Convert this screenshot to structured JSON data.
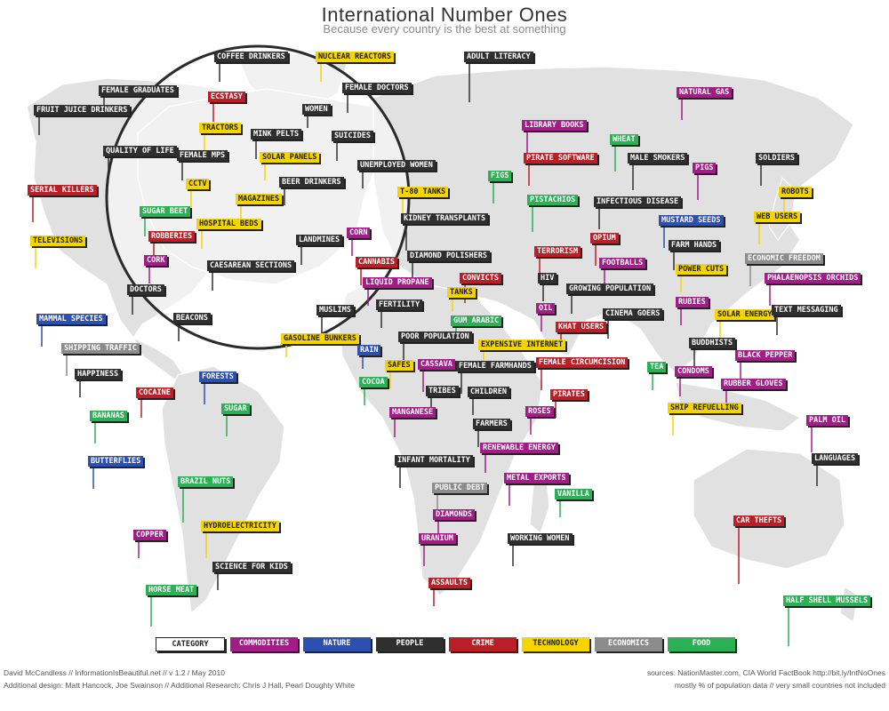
{
  "title": "International Number Ones",
  "subtitle": "Because every country is the best at something",
  "colors": {
    "commodities": "#a21d87",
    "nature": "#2d4fb0",
    "people": "#2f2f2f",
    "crime": "#b81f27",
    "technology": "#f5d400",
    "economics": "#8c8c8c",
    "food": "#2bb056",
    "land": "#e1e1e1"
  },
  "legend": [
    {
      "label": "Category",
      "cat": "category"
    },
    {
      "label": "Commodities",
      "cat": "commodities"
    },
    {
      "label": "Nature",
      "cat": "nature"
    },
    {
      "label": "People",
      "cat": "people"
    },
    {
      "label": "Crime",
      "cat": "crime"
    },
    {
      "label": "Technology",
      "cat": "technology"
    },
    {
      "label": "Economics",
      "cat": "economics"
    },
    {
      "label": "Food",
      "cat": "food"
    }
  ],
  "labels": [
    {
      "text": "Coffee Drinkers",
      "cat": "people"
    },
    {
      "text": "Nuclear Reactors",
      "cat": "technology"
    },
    {
      "text": "Adult Literacy",
      "cat": "people"
    },
    {
      "text": "Female Graduates",
      "cat": "people"
    },
    {
      "text": "Fruit Juice Drinkers",
      "cat": "people"
    },
    {
      "text": "Ecstasy",
      "cat": "crime"
    },
    {
      "text": "Female Doctors",
      "cat": "people"
    },
    {
      "text": "Women",
      "cat": "people"
    },
    {
      "text": "Natural Gas",
      "cat": "commodities"
    },
    {
      "text": "Tractors",
      "cat": "technology"
    },
    {
      "text": "Mink Pelts",
      "cat": "people"
    },
    {
      "text": "Suicides",
      "cat": "people"
    },
    {
      "text": "Library Books",
      "cat": "commodities"
    },
    {
      "text": "Quality of Life",
      "cat": "people"
    },
    {
      "text": "Female MPs",
      "cat": "people"
    },
    {
      "text": "Solar Panels",
      "cat": "technology"
    },
    {
      "text": "Wheat",
      "cat": "food"
    },
    {
      "text": "Pirate Software",
      "cat": "crime"
    },
    {
      "text": "Male Smokers",
      "cat": "people"
    },
    {
      "text": "Soldiers",
      "cat": "people"
    },
    {
      "text": "Unemployed Women",
      "cat": "people"
    },
    {
      "text": "Pigs",
      "cat": "commodities"
    },
    {
      "text": "CCTV",
      "cat": "technology"
    },
    {
      "text": "Beer Drinkers",
      "cat": "people"
    },
    {
      "text": "Figs",
      "cat": "food"
    },
    {
      "text": "T-80 Tanks",
      "cat": "technology"
    },
    {
      "text": "Robots",
      "cat": "technology"
    },
    {
      "text": "Serial Killers",
      "cat": "crime"
    },
    {
      "text": "Magazines",
      "cat": "technology"
    },
    {
      "text": "Pistachios",
      "cat": "food"
    },
    {
      "text": "Infectious Disease",
      "cat": "people"
    },
    {
      "text": "Sugar Beet",
      "cat": "food"
    },
    {
      "text": "Hospital Beds",
      "cat": "technology"
    },
    {
      "text": "Kidney Transplants",
      "cat": "people"
    },
    {
      "text": "Mustard Seeds",
      "cat": "nature"
    },
    {
      "text": "Web Users",
      "cat": "technology"
    },
    {
      "text": "Robberies",
      "cat": "crime"
    },
    {
      "text": "Corn",
      "cat": "commodities"
    },
    {
      "text": "Opium",
      "cat": "crime"
    },
    {
      "text": "Televisions",
      "cat": "technology"
    },
    {
      "text": "Landmines",
      "cat": "people"
    },
    {
      "text": "Terrorism",
      "cat": "crime"
    },
    {
      "text": "Farm Hands",
      "cat": "people"
    },
    {
      "text": "Diamond Polishers",
      "cat": "people"
    },
    {
      "text": "Footballs",
      "cat": "commodities"
    },
    {
      "text": "Cork",
      "cat": "commodities"
    },
    {
      "text": "Caesarean Sections",
      "cat": "people"
    },
    {
      "text": "Cannabis",
      "cat": "crime"
    },
    {
      "text": "Power Cuts",
      "cat": "technology"
    },
    {
      "text": "Economic Freedom",
      "cat": "economics"
    },
    {
      "text": "Convicts",
      "cat": "crime"
    },
    {
      "text": "Liquid Propane",
      "cat": "commodities"
    },
    {
      "text": "HIV",
      "cat": "people"
    },
    {
      "text": "Growing Population",
      "cat": "people"
    },
    {
      "text": "Phalaenopsis Orchids",
      "cat": "commodities"
    },
    {
      "text": "Doctors",
      "cat": "people"
    },
    {
      "text": "Tanks",
      "cat": "technology"
    },
    {
      "text": "Fertility",
      "cat": "people"
    },
    {
      "text": "Oil",
      "cat": "commodities"
    },
    {
      "text": "Rubies",
      "cat": "commodities"
    },
    {
      "text": "Muslims",
      "cat": "people"
    },
    {
      "text": "Cinema Goers",
      "cat": "people"
    },
    {
      "text": "Solar Energy",
      "cat": "technology"
    },
    {
      "text": "Text Messaging",
      "cat": "people"
    },
    {
      "text": "Mammal Species",
      "cat": "nature"
    },
    {
      "text": "Gum Arabic",
      "cat": "food"
    },
    {
      "text": "Beacons",
      "cat": "people"
    },
    {
      "text": "Gasoline Bunkers",
      "cat": "technology"
    },
    {
      "text": "Poor Population",
      "cat": "people"
    },
    {
      "text": "Khat Users",
      "cat": "crime"
    },
    {
      "text": "Buddhists",
      "cat": "people"
    },
    {
      "text": "Shipping Traffic",
      "cat": "economics"
    },
    {
      "text": "Expensive Internet",
      "cat": "technology"
    },
    {
      "text": "Rain",
      "cat": "nature"
    },
    {
      "text": "Black Pepper",
      "cat": "commodities"
    },
    {
      "text": "Safes",
      "cat": "technology"
    },
    {
      "text": "Cassava",
      "cat": "commodities"
    },
    {
      "text": "Female Farmhands",
      "cat": "people"
    },
    {
      "text": "Female Circumcision",
      "cat": "crime"
    },
    {
      "text": "Tea",
      "cat": "food"
    },
    {
      "text": "Condoms",
      "cat": "commodities"
    },
    {
      "text": "Happiness",
      "cat": "people"
    },
    {
      "text": "Forests",
      "cat": "nature"
    },
    {
      "text": "Rubber Gloves",
      "cat": "commodities"
    },
    {
      "text": "Cocoa",
      "cat": "food"
    },
    {
      "text": "Tribes",
      "cat": "people"
    },
    {
      "text": "Children",
      "cat": "people"
    },
    {
      "text": "Cocaine",
      "cat": "crime"
    },
    {
      "text": "Pirates",
      "cat": "crime"
    },
    {
      "text": "Bananas",
      "cat": "food"
    },
    {
      "text": "Sugar",
      "cat": "food"
    },
    {
      "text": "Ship Refuelling",
      "cat": "technology"
    },
    {
      "text": "Manganese",
      "cat": "commodities"
    },
    {
      "text": "Roses",
      "cat": "commodities"
    },
    {
      "text": "Palm Oil",
      "cat": "commodities"
    },
    {
      "text": "Farmers",
      "cat": "people"
    },
    {
      "text": "Renewable Energy",
      "cat": "commodities"
    },
    {
      "text": "Butterflies",
      "cat": "nature"
    },
    {
      "text": "Infant Mortality",
      "cat": "people"
    },
    {
      "text": "Languages",
      "cat": "people"
    },
    {
      "text": "Brazil Nuts",
      "cat": "food"
    },
    {
      "text": "Public Debt",
      "cat": "economics"
    },
    {
      "text": "Metal Exports",
      "cat": "commodities"
    },
    {
      "text": "Vanilla",
      "cat": "food"
    },
    {
      "text": "Diamonds",
      "cat": "commodities"
    },
    {
      "text": "Car Thefts",
      "cat": "crime"
    },
    {
      "text": "Hydroelectricity",
      "cat": "technology"
    },
    {
      "text": "Copper",
      "cat": "commodities"
    },
    {
      "text": "Uranium",
      "cat": "commodities"
    },
    {
      "text": "Working Women",
      "cat": "people"
    },
    {
      "text": "Science for Kids",
      "cat": "people"
    },
    {
      "text": "Assaults",
      "cat": "crime"
    },
    {
      "text": "Horse Meat",
      "cat": "food"
    },
    {
      "text": "Half Shell Mussels",
      "cat": "food"
    }
  ],
  "credits": {
    "line1": "David McCandless // InformationIsBeautiful.net // v 1.2 / May 2010",
    "line2": "Additional design: Matt Hancock, Joe Swainson // Additional Research: Chris J Hall, Pearl Doughty White",
    "sources": "sources: NationMaster.com, CIA World FactBook http://bit.ly/IntNoOnes",
    "note": "mostly % of population data // very small countries not included"
  }
}
